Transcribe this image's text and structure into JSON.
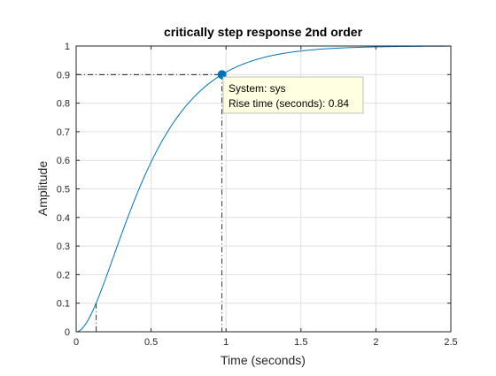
{
  "chart_data": {
    "type": "line",
    "title": "critically step response 2nd order",
    "xlabel": "Time (seconds)",
    "ylabel": "Amplitude",
    "xlim": [
      0,
      2.5
    ],
    "ylim": [
      0,
      1
    ],
    "xticks": [
      "0",
      "0.5",
      "1",
      "1.5",
      "2",
      "2.5"
    ],
    "yticks": [
      "0",
      "0.1",
      "0.2",
      "0.3",
      "0.4",
      "0.5",
      "0.6",
      "0.7",
      "0.8",
      "0.9",
      "1"
    ],
    "grid": true,
    "series": [
      {
        "model": "critically damped second-order step response",
        "natural_frequency_rad_s": 4.0,
        "t_end": 2.5,
        "color": "#0072BD"
      }
    ],
    "rise_time_markers": {
      "t10": 0.134,
      "t90": 0.973,
      "y10": 0.1,
      "y90": 0.9,
      "color": "#000000"
    },
    "datatip": {
      "x": 0.973,
      "y": 0.9,
      "line1": "System: sys",
      "line2": "Rise time (seconds): 0.84",
      "background": "#FFFFE1",
      "border": "#BFBFBF"
    }
  }
}
